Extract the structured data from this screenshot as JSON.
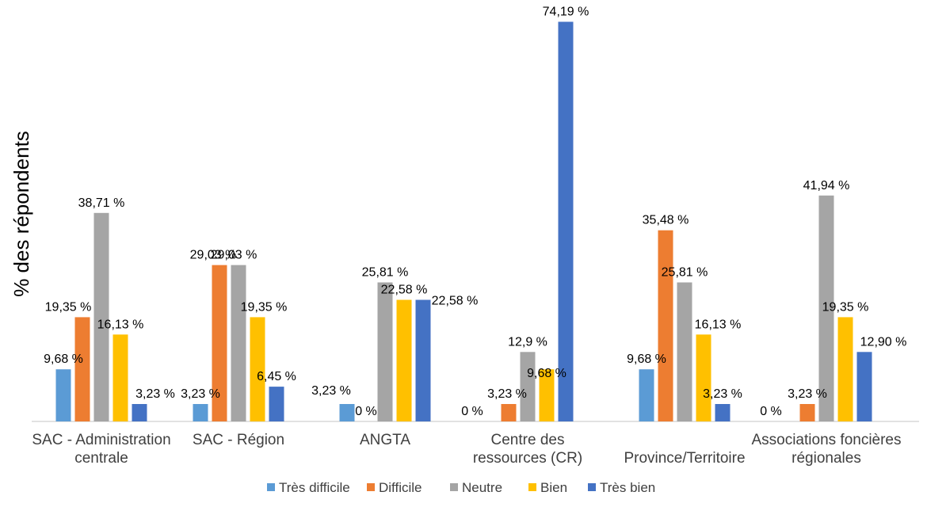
{
  "chart_data": {
    "type": "bar",
    "title": "",
    "xlabel": "",
    "ylabel": "% des répondents",
    "ylim": [
      0,
      80
    ],
    "grid": false,
    "legend_position": "bottom",
    "categories": [
      "SAC - Administration centrale",
      "SAC - Région",
      "ANGTA",
      "Centre des ressources (CR)",
      "Province/Territoire",
      "Associations foncières régionales"
    ],
    "series": [
      {
        "name": "Très difficile",
        "color": "#5B9BD5",
        "values": [
          9.68,
          3.23,
          3.23,
          0,
          9.68,
          0
        ],
        "labels": [
          "9,68 %",
          "3,23 %",
          "3,23 %",
          "0 %",
          "9,68 %",
          "0 %"
        ]
      },
      {
        "name": "Difficile",
        "color": "#ED7D31",
        "values": [
          19.35,
          29.03,
          0,
          3.23,
          35.48,
          3.23
        ],
        "labels": [
          "19,35 %",
          "29,03 %",
          "0 %",
          "3,23 %",
          "35,48 %",
          "3,23 %"
        ]
      },
      {
        "name": "Neutre",
        "color": "#A5A5A5",
        "values": [
          38.71,
          29.03,
          25.81,
          12.9,
          25.81,
          41.94
        ],
        "labels": [
          "38,71 %",
          "29,03 %",
          "25,81 %",
          "12,9 %",
          "25,81 %",
          "41,94 %"
        ]
      },
      {
        "name": "Bien",
        "color": "#FFC000",
        "values": [
          16.13,
          19.35,
          22.58,
          9.68,
          16.13,
          19.35
        ],
        "labels": [
          "16,13 %",
          "19,35 %",
          "22,58 %",
          "9,68 %",
          "16,13 %",
          "19,35 %"
        ]
      },
      {
        "name": "Très bien",
        "color": "#4472C4",
        "values": [
          3.23,
          6.45,
          22.58,
          74.19,
          3.23,
          12.9
        ],
        "labels": [
          "3,23 %",
          "6,45 %",
          "22,58 %",
          "74,19 %",
          "3,23 %",
          "12,90 %"
        ]
      }
    ]
  }
}
